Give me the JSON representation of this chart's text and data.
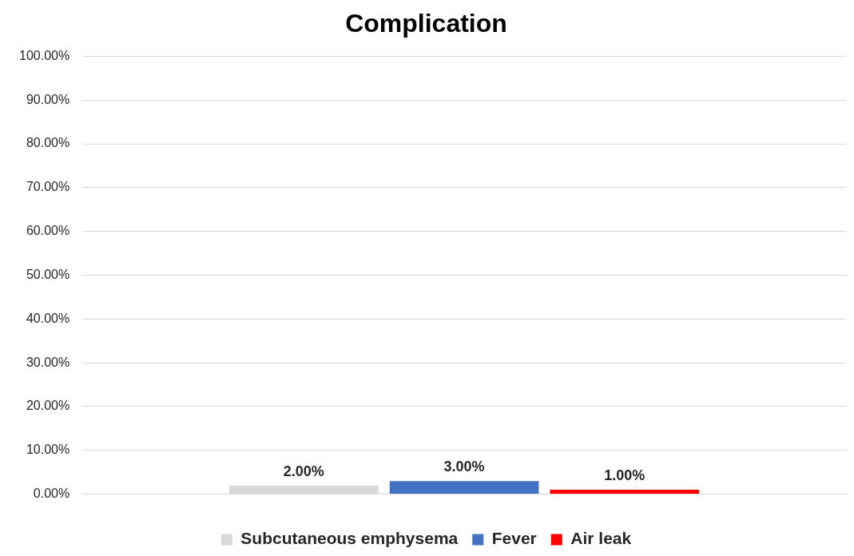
{
  "chart_data": {
    "type": "bar",
    "title": "Complication",
    "categories": [
      null
    ],
    "series": [
      {
        "name": "Subcutaneous emphysema",
        "color": "#d9d9d9",
        "values": [
          2
        ],
        "value_labels": [
          "2.00%"
        ]
      },
      {
        "name": "Fever",
        "color": "#4472c4",
        "values": [
          3
        ],
        "value_labels": [
          "3.00%"
        ]
      },
      {
        "name": "Air leak",
        "color": "#ff0000",
        "values": [
          1
        ],
        "value_labels": [
          "1.00%"
        ]
      }
    ],
    "ylim": [
      0,
      100
    ],
    "yticks": [
      {
        "value": 0,
        "label": "0.00%"
      },
      {
        "value": 10,
        "label": "10.00%"
      },
      {
        "value": 20,
        "label": "20.00%"
      },
      {
        "value": 30,
        "label": "30.00%"
      },
      {
        "value": 40,
        "label": "40.00%"
      },
      {
        "value": 50,
        "label": "50.00%"
      },
      {
        "value": 60,
        "label": "60.00%"
      },
      {
        "value": 70,
        "label": "70.00%"
      },
      {
        "value": 80,
        "label": "80.00%"
      },
      {
        "value": 90,
        "label": "90.00%"
      },
      {
        "value": 100,
        "label": "100.00%"
      }
    ],
    "grid": "y",
    "legend": "bottom"
  }
}
